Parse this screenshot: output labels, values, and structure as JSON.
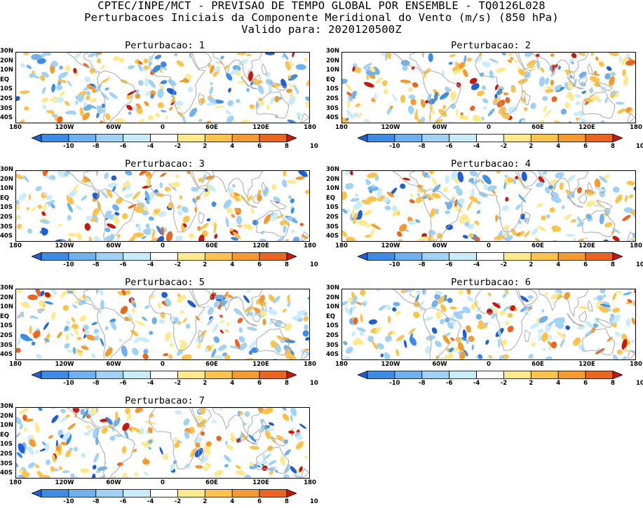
{
  "title": {
    "line1": "CPTEC/INPE/MCT - PREVISAO DE TEMPO GLOBAL POR ENSEMBLE - TQ0126L028",
    "line2": "Perturbacoes Iniciais da Componente Meridional do Vento (m/s) (850 hPa)",
    "line3": "Valido para: 2020120500Z"
  },
  "panels": [
    {
      "title": "Perturbacao: 1"
    },
    {
      "title": "Perturbacao: 2"
    },
    {
      "title": "Perturbacao: 3"
    },
    {
      "title": "Perturbacao: 4"
    },
    {
      "title": "Perturbacao: 5"
    },
    {
      "title": "Perturbacao: 6"
    },
    {
      "title": "Perturbacao: 7"
    }
  ],
  "map_axes": {
    "lat_labels": [
      "30N",
      "20N",
      "10N",
      "EQ",
      "10S",
      "20S",
      "30S",
      "40S"
    ],
    "lat_values": [
      30,
      20,
      10,
      0,
      -10,
      -20,
      -30,
      -40
    ],
    "lat_range": [
      -45,
      30
    ],
    "lon_labels": [
      "180",
      "120W",
      "60W",
      "0",
      "60E",
      "120E",
      "180"
    ],
    "lon_values": [
      -180,
      -120,
      -60,
      0,
      60,
      120,
      180
    ],
    "lon_range": [
      -180,
      180
    ]
  },
  "colorbar": {
    "labels": [
      "-10",
      "-8",
      "-6",
      "-4",
      "-2",
      "2",
      "4",
      "6",
      "8",
      "10"
    ],
    "colors": [
      "#1e5fd6",
      "#3c8ce6",
      "#6fb0ee",
      "#9fd2f5",
      "#c9ecfb",
      "#ffffff",
      "#ffe98a",
      "#fcc24a",
      "#f59a2e",
      "#eb6520",
      "#c8190f"
    ]
  },
  "colors": {
    "coastline": "#a9a9a9",
    "frame": "#000000",
    "background": "#ffffff"
  }
}
